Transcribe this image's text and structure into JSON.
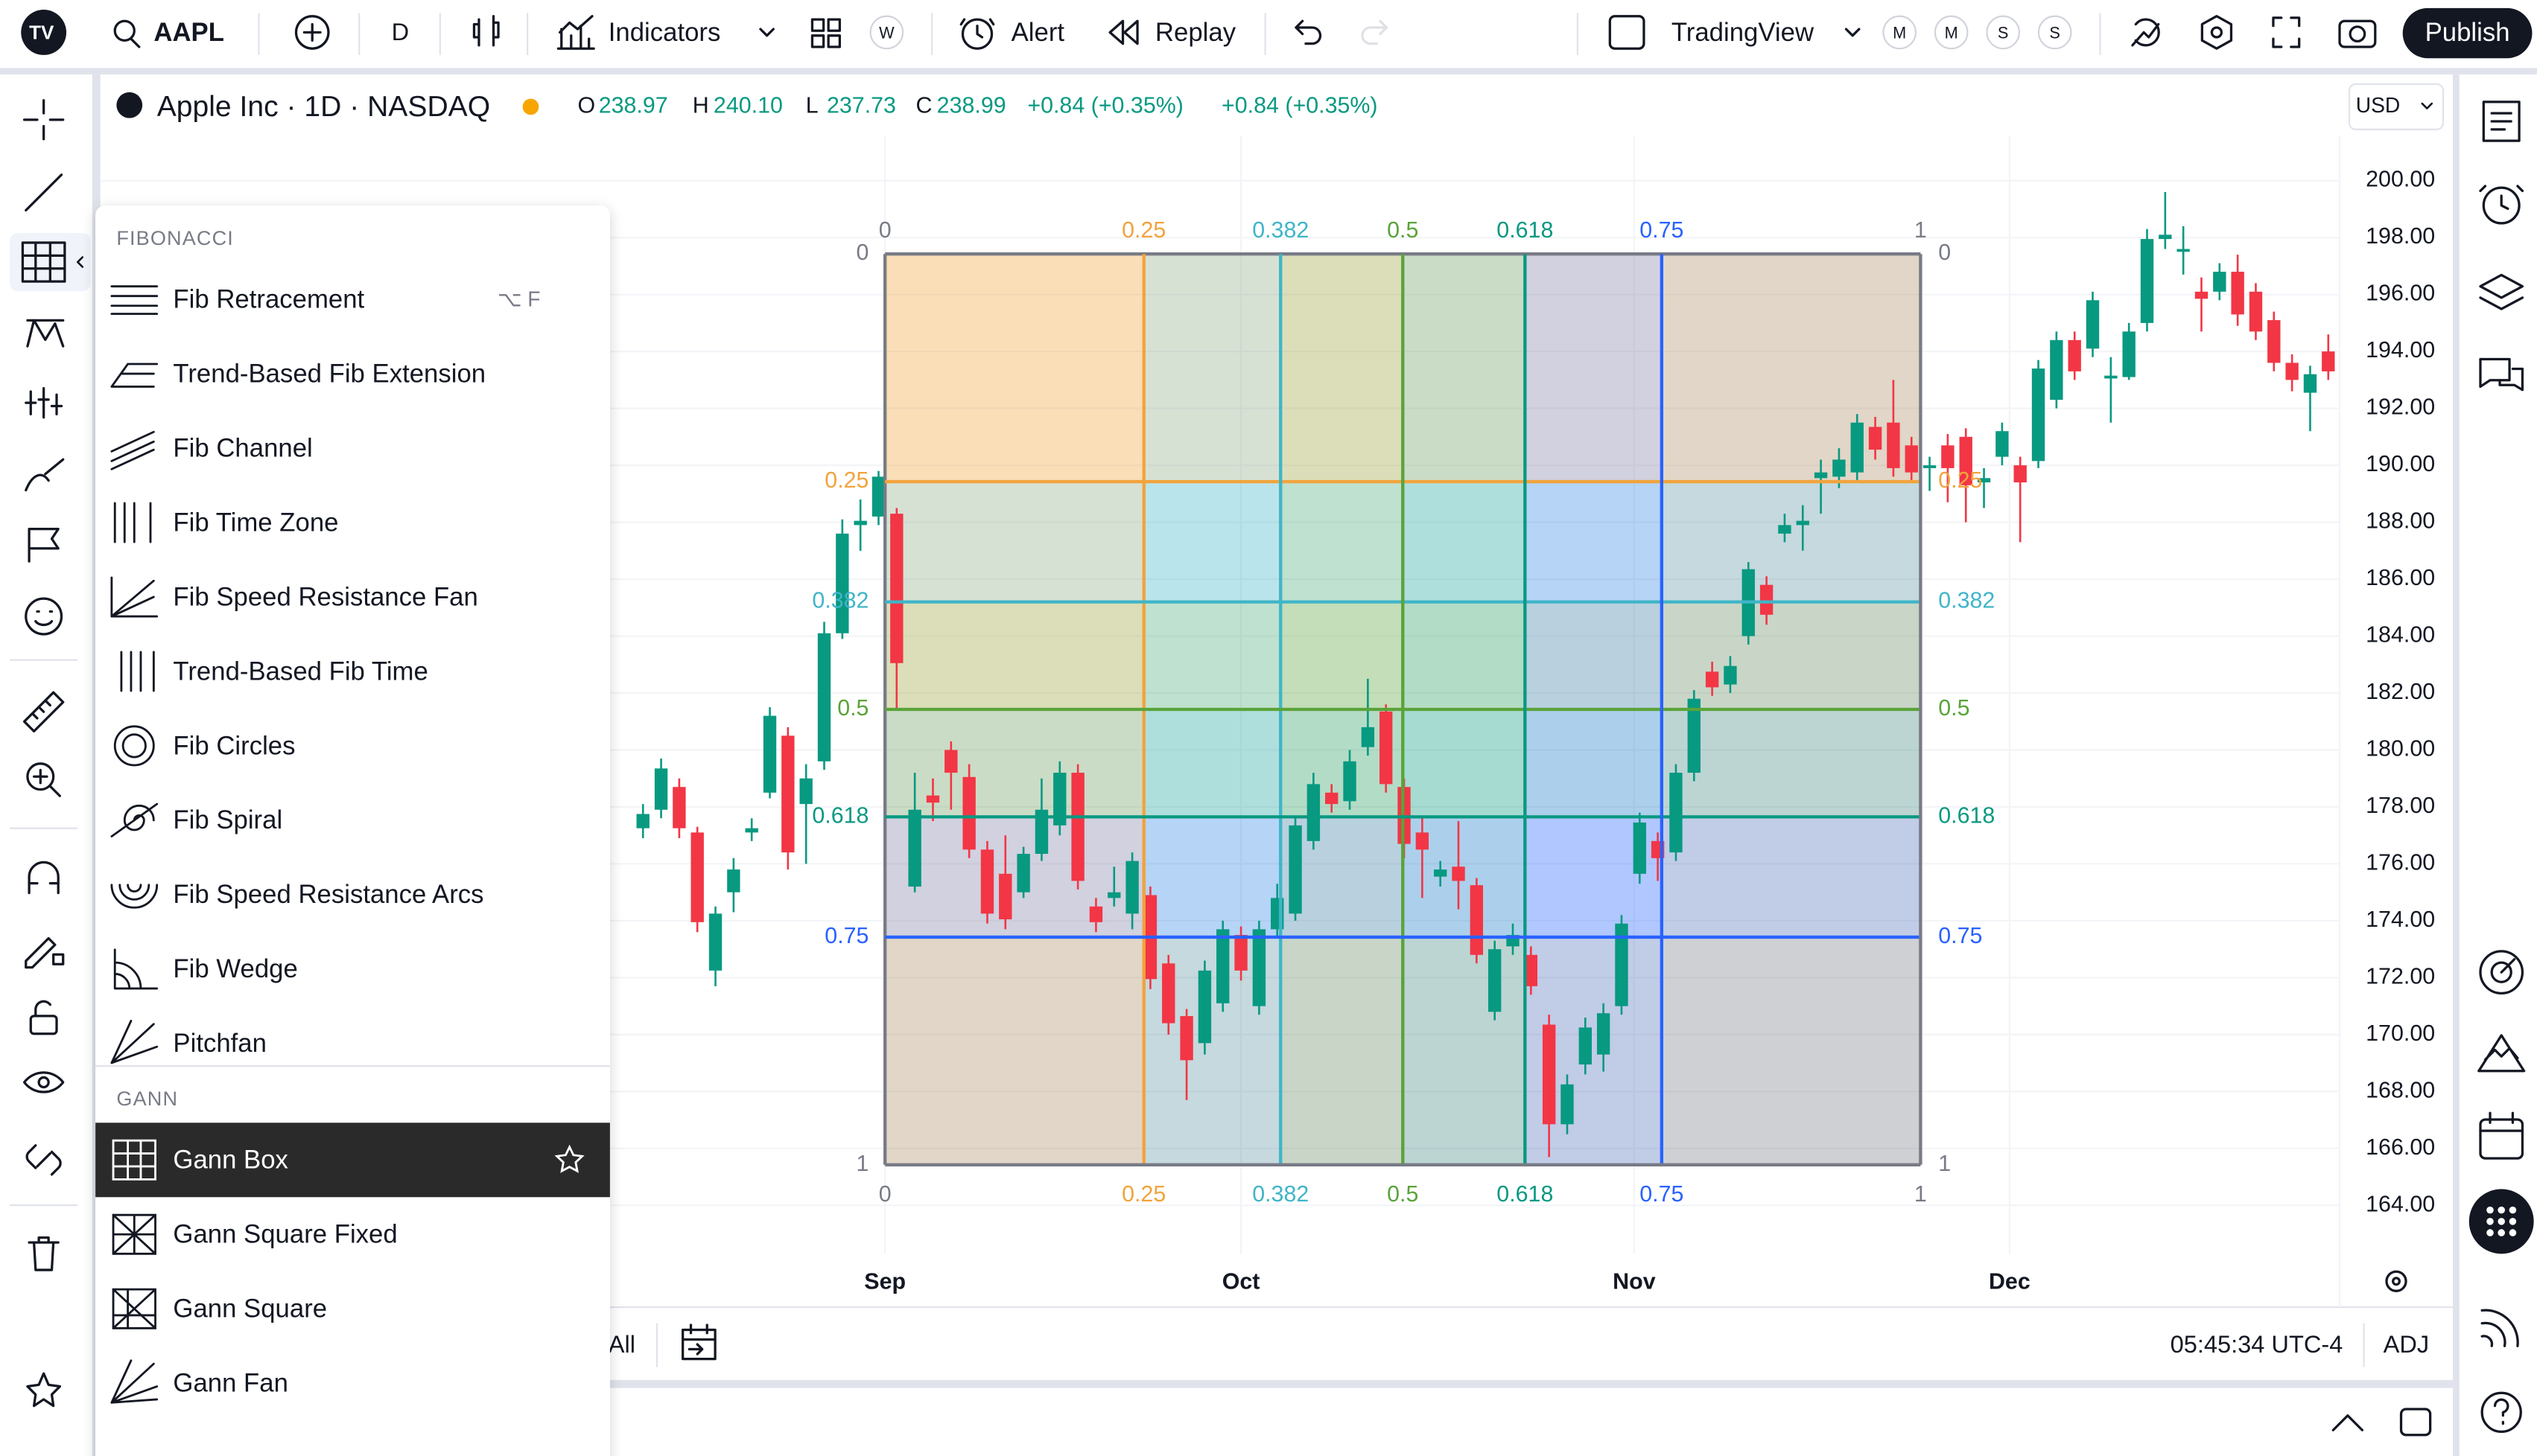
{
  "toolbar": {
    "symbol": "AAPL",
    "interval": "D",
    "indicators": "Indicators",
    "watch_badge": "W",
    "alert": "Alert",
    "replay": "Replay",
    "layout": "TradingView",
    "badges": [
      "M",
      "M",
      "S",
      "S"
    ],
    "publish": "Publish"
  },
  "legend": {
    "title": "Apple Inc · 1D · NASDAQ",
    "ohlc": [
      {
        "key": "O",
        "value": "238.97"
      },
      {
        "key": "H",
        "value": "240.10"
      },
      {
        "key": "L",
        "value": "237.73"
      },
      {
        "key": "C",
        "value": "238.99"
      }
    ],
    "change": "+0.84 (+0.35%)",
    "change_ext": "+0.84 (+0.35%)",
    "currency": "USD"
  },
  "menu": {
    "sections": [
      {
        "title": "FIBONACCI",
        "items": [
          {
            "label": "Fib Retracement",
            "shortcut": "⌥ F"
          },
          {
            "label": "Trend-Based Fib Extension"
          },
          {
            "label": "Fib Channel"
          },
          {
            "label": "Fib Time Zone"
          },
          {
            "label": "Fib Speed Resistance Fan"
          },
          {
            "label": "Trend-Based Fib Time"
          },
          {
            "label": "Fib Circles"
          },
          {
            "label": "Fib Spiral"
          },
          {
            "label": "Fib Speed Resistance Arcs"
          },
          {
            "label": "Fib Wedge"
          },
          {
            "label": "Pitchfan"
          }
        ]
      },
      {
        "title": "GANN",
        "items": [
          {
            "label": "Gann Box",
            "selected": true
          },
          {
            "label": "Gann Square Fixed"
          },
          {
            "label": "Gann Square"
          },
          {
            "label": "Gann Fan"
          }
        ]
      }
    ]
  },
  "chart": {
    "up_color": "#089981",
    "down_color": "#f23645",
    "ylim": [
      162.3,
      201.8
    ],
    "yticks": [
      {
        "value": 200,
        "label": "200.00"
      },
      {
        "value": 198,
        "label": "198.00"
      },
      {
        "value": 196,
        "label": "196.00"
      },
      {
        "value": 194,
        "label": "194.00"
      },
      {
        "value": 192,
        "label": "192.00"
      },
      {
        "value": 190,
        "label": "190.00"
      },
      {
        "value": 188,
        "label": "188.00"
      },
      {
        "value": 186,
        "label": "186.00"
      },
      {
        "value": 184,
        "label": "184.00"
      },
      {
        "value": 182,
        "label": "182.00"
      },
      {
        "value": 180,
        "label": "180.00"
      },
      {
        "value": 178,
        "label": "178.00"
      },
      {
        "value": 176,
        "label": "176.00"
      },
      {
        "value": 174,
        "label": "174.00"
      },
      {
        "value": 172,
        "label": "172.00"
      },
      {
        "value": 170,
        "label": "170.00"
      },
      {
        "value": 168,
        "label": "168.00"
      },
      {
        "value": 166,
        "label": "166.00"
      },
      {
        "value": 164,
        "label": "164.00"
      }
    ],
    "months": [
      "Sep",
      "Oct",
      "Nov",
      "Dec"
    ],
    "gann_levels": [
      0,
      0.25,
      0.382,
      0.5,
      0.618,
      0.75,
      1
    ],
    "gann_colors": [
      "#787b86",
      "#f2a33c",
      "#3fb5c8",
      "#5aa33a",
      "#089981",
      "#2962ff",
      "#787b86"
    ],
    "candles": [
      [
        177.25,
        178.1,
        176.9,
        177.75
      ],
      [
        177.9,
        179.7,
        177.6,
        179.35
      ],
      [
        178.7,
        179.0,
        176.9,
        177.25
      ],
      [
        177.1,
        177.3,
        173.6,
        173.95
      ],
      [
        172.25,
        174.5,
        171.7,
        174.25
      ],
      [
        175.0,
        176.2,
        174.3,
        175.8
      ],
      [
        177.1,
        177.6,
        176.8,
        177.25
      ],
      [
        178.5,
        181.5,
        178.3,
        181.2
      ],
      [
        180.5,
        180.8,
        175.8,
        176.4
      ],
      [
        178.1,
        179.5,
        176.0,
        179.0
      ],
      [
        179.6,
        184.5,
        179.3,
        184.1
      ],
      [
        184.1,
        188.1,
        183.9,
        187.6
      ],
      [
        187.9,
        188.8,
        187.0,
        188.05
      ],
      [
        188.2,
        189.8,
        187.9,
        189.6
      ],
      [
        188.3,
        188.5,
        181.4,
        183.05
      ],
      [
        175.2,
        179.2,
        175.0,
        177.9
      ],
      [
        178.4,
        179.0,
        177.5,
        178.15
      ],
      [
        180.0,
        180.3,
        177.9,
        179.2
      ],
      [
        179.05,
        179.5,
        176.2,
        176.5
      ],
      [
        176.5,
        176.8,
        173.9,
        174.25
      ],
      [
        175.65,
        177.0,
        173.7,
        174.05
      ],
      [
        175.0,
        176.6,
        174.8,
        176.35
      ],
      [
        176.35,
        179.0,
        176.1,
        177.9
      ],
      [
        177.35,
        179.6,
        177.0,
        179.2
      ],
      [
        179.2,
        179.5,
        175.1,
        175.4
      ],
      [
        174.5,
        174.8,
        173.6,
        173.95
      ],
      [
        174.8,
        175.9,
        174.5,
        175.0
      ],
      [
        174.25,
        176.4,
        173.7,
        176.1
      ],
      [
        174.9,
        175.2,
        171.6,
        171.95
      ],
      [
        172.5,
        172.8,
        170.0,
        170.4
      ],
      [
        170.65,
        170.9,
        167.7,
        169.1
      ],
      [
        169.7,
        172.6,
        169.3,
        172.25
      ],
      [
        171.1,
        174.0,
        170.8,
        173.7
      ],
      [
        173.5,
        173.8,
        171.9,
        172.25
      ],
      [
        171.0,
        174.0,
        170.7,
        173.7
      ],
      [
        173.7,
        175.3,
        173.4,
        174.8
      ],
      [
        174.25,
        177.6,
        174.0,
        177.35
      ],
      [
        176.8,
        179.2,
        176.5,
        178.8
      ],
      [
        178.5,
        178.8,
        177.8,
        178.1
      ],
      [
        178.2,
        180.0,
        177.9,
        179.6
      ],
      [
        180.1,
        182.5,
        179.8,
        180.8
      ],
      [
        181.35,
        181.6,
        178.5,
        178.8
      ],
      [
        178.7,
        179.0,
        176.2,
        176.7
      ],
      [
        177.1,
        177.6,
        174.8,
        176.5
      ],
      [
        175.55,
        176.1,
        175.2,
        175.8
      ],
      [
        175.9,
        177.5,
        174.4,
        175.4
      ],
      [
        175.25,
        175.5,
        172.5,
        172.8
      ],
      [
        170.8,
        173.3,
        170.5,
        173.0
      ],
      [
        173.1,
        173.9,
        172.8,
        173.5
      ],
      [
        172.8,
        173.1,
        171.4,
        171.7
      ],
      [
        170.35,
        170.7,
        165.7,
        166.85
      ],
      [
        166.85,
        168.6,
        166.5,
        168.25
      ],
      [
        168.95,
        170.6,
        168.6,
        170.25
      ],
      [
        169.3,
        171.1,
        168.7,
        170.75
      ],
      [
        171.0,
        174.2,
        170.7,
        173.9
      ],
      [
        175.65,
        177.8,
        175.3,
        177.45
      ],
      [
        176.8,
        177.1,
        175.4,
        176.2
      ],
      [
        176.4,
        179.5,
        176.1,
        179.2
      ],
      [
        179.2,
        182.1,
        178.9,
        181.8
      ],
      [
        182.75,
        183.1,
        181.9,
        182.2
      ],
      [
        182.3,
        183.3,
        182.0,
        182.95
      ],
      [
        184.0,
        186.6,
        183.7,
        186.35
      ],
      [
        185.8,
        186.1,
        184.4,
        184.75
      ],
      [
        187.6,
        188.3,
        187.3,
        187.9
      ],
      [
        187.9,
        188.6,
        187.0,
        188.05
      ],
      [
        189.55,
        190.2,
        188.3,
        189.75
      ],
      [
        189.6,
        190.6,
        189.2,
        190.2
      ],
      [
        189.75,
        191.8,
        189.4,
        191.5
      ],
      [
        191.35,
        191.7,
        190.2,
        190.55
      ],
      [
        191.5,
        193.0,
        189.6,
        189.9
      ],
      [
        190.7,
        191.0,
        189.4,
        189.75
      ],
      [
        189.9,
        190.3,
        189.1,
        190.0
      ],
      [
        190.7,
        191.1,
        188.7,
        189.9
      ],
      [
        191.0,
        191.3,
        188.0,
        189.3
      ],
      [
        189.4,
        189.9,
        188.5,
        189.55
      ],
      [
        190.3,
        191.5,
        190.0,
        191.2
      ],
      [
        190.0,
        190.3,
        187.3,
        189.4
      ],
      [
        190.15,
        193.7,
        189.9,
        193.4
      ],
      [
        192.3,
        194.7,
        192.0,
        194.4
      ],
      [
        194.4,
        194.7,
        193.0,
        193.3
      ],
      [
        194.1,
        196.1,
        193.8,
        195.8
      ],
      [
        193.05,
        193.8,
        191.5,
        193.15
      ],
      [
        193.1,
        195.0,
        193.0,
        194.7
      ],
      [
        195.0,
        198.3,
        194.7,
        197.95
      ],
      [
        197.95,
        199.6,
        197.6,
        198.1
      ],
      [
        197.5,
        198.4,
        196.7,
        197.6
      ],
      [
        196.1,
        196.6,
        194.7,
        195.85
      ],
      [
        196.1,
        197.1,
        195.8,
        196.8
      ],
      [
        196.8,
        197.4,
        194.9,
        195.3
      ],
      [
        196.1,
        196.4,
        194.4,
        194.7
      ],
      [
        195.1,
        195.4,
        193.3,
        193.6
      ],
      [
        193.6,
        193.9,
        192.6,
        193.0
      ],
      [
        192.55,
        193.5,
        191.2,
        193.2
      ],
      [
        194.0,
        194.6,
        193.0,
        193.3
      ]
    ]
  },
  "bottom": {
    "range": "All",
    "time": "05:45:34 UTC-4",
    "adj": "ADJ"
  }
}
